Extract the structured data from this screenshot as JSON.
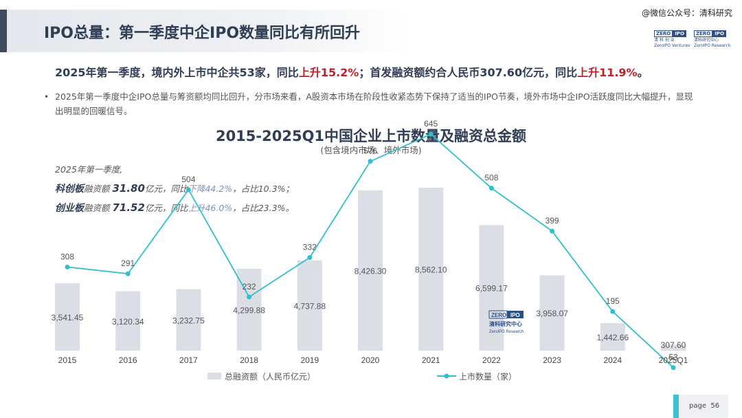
{
  "header": {
    "title": "IPO总量：第一季度中企IPO数量同比有所回升",
    "watermark": "@微信公众号：清科研究",
    "logo_zero": "ZERO",
    "logo_ipo": "IPO",
    "logo_cn": "清 科 创 业",
    "logo_en": "ZeroIPO Ventures",
    "logo2_cn": "清科研究中心",
    "logo2_en": "ZeroIPO Research"
  },
  "headline": {
    "part1": "2025年第一季度，境内外上市中企共53家，同比",
    "red1": "上升15.2%",
    "part2": "；首发融资额约合人民币307.60亿元，同比",
    "red2": "上升11.9%",
    "part3": "。"
  },
  "bullet": {
    "marker": "•",
    "text": "2025年第一季度中企IPO总量与筹资额均同比回升，分市场来看，A股资本市场在阶段性收紧态势下保持了适当的IPO节奏，境外市场中企IPO活跃度同比大幅提升，显现出明显的回暖信号。"
  },
  "notes": {
    "line1": "2025年第一季度,",
    "l2_board": "科创板",
    "l2_a": "融资额 ",
    "l2_val": "31.80",
    "l2_unit": "亿元",
    "l2_b": "，同比",
    "l2_change": "下降44.2%",
    "l2_c": "，占比10.3%；",
    "l3_board": "创业板",
    "l3_a": "融资额 ",
    "l3_val": "71.52",
    "l3_unit": "亿元",
    "l3_b": "，同比",
    "l3_change": "上升46.0%",
    "l3_c": "，占比23.3%。"
  },
  "chart_data": {
    "type": "bar+line",
    "title": "2015-2025Q1中国企业上市数量及融资总金额",
    "subtitle": "(包含境内市场、境外市场)",
    "categories": [
      "2015",
      "2016",
      "2017",
      "2018",
      "2019",
      "2020",
      "2021",
      "2022",
      "2023",
      "2024",
      "2025Q1"
    ],
    "series": [
      {
        "name": "总融资额（人民币亿元）",
        "type": "bar",
        "color": "#dcdee6",
        "values": [
          3541.45,
          3120.34,
          3232.75,
          4299.88,
          4737.88,
          8426.3,
          8562.1,
          6599.17,
          3958.07,
          1442.66,
          307.6
        ],
        "labels": [
          "3,541.45",
          "3,120.34",
          "3,232.75",
          "4,299.88",
          "4,737.88",
          "8,426.30",
          "8,562.10",
          "6,599.17",
          "3,958.07",
          "1,442.66",
          "307.60"
        ]
      },
      {
        "name": "上市数量（家）",
        "type": "line",
        "color": "#2fbfcf",
        "values": [
          308,
          291,
          504,
          232,
          332,
          576,
          645,
          508,
          399,
          195,
          53
        ]
      }
    ],
    "legend_position": "bottom-center",
    "grid": false
  },
  "watermark_logo": {
    "zero": "ZERO",
    "ipo": "IPO",
    "cn": "清科研究中心",
    "en": "ZeroIPO Research"
  },
  "footer": {
    "page_label": "page",
    "page_number": "56"
  }
}
